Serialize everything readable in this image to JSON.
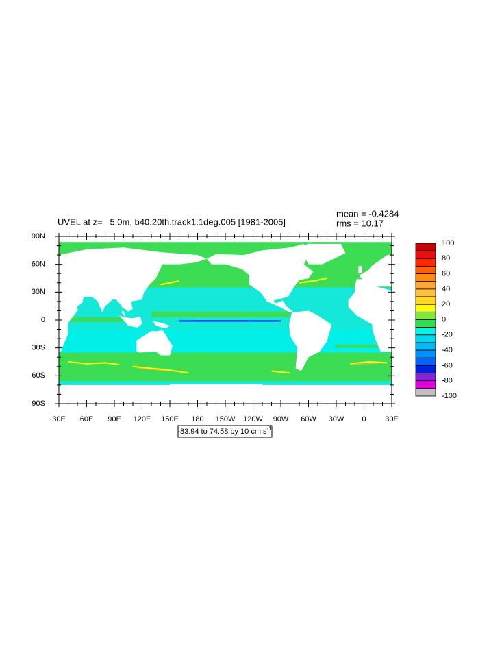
{
  "map": {
    "title": "UVEL at z=   5.0m, b40.20th.track1.1deg.005 [1981-2005]",
    "mean_label": "mean = -0.4284",
    "rms_label": "rms = 10.17",
    "y_labels": [
      "90N",
      "60N",
      "30N",
      "0",
      "30S",
      "60S",
      "90S"
    ],
    "x_labels": [
      "30E",
      "60E",
      "90E",
      "120E",
      "150E",
      "180",
      "150W",
      "120W",
      "90W",
      "60W",
      "30W",
      "0",
      "30E"
    ],
    "range_label": "-83.94 to 74.58 by 10 cm s",
    "range_exponent": "-1",
    "colorbar": {
      "bins": [
        100,
        90,
        80,
        70,
        60,
        50,
        40,
        30,
        20,
        10,
        0,
        -10,
        -20,
        -30,
        -40,
        -50,
        -60,
        -70,
        -80,
        -90,
        -100
      ],
      "colors": [
        "#c80000",
        "#e61010",
        "#ff2800",
        "#ff6000",
        "#ff8c10",
        "#ffa83a",
        "#ffc040",
        "#ffd820",
        "#ffff00",
        "#80e640",
        "#30dc50",
        "#10f0e0",
        "#00d8f0",
        "#00b8f8",
        "#0090ff",
        "#0064ff",
        "#0020e0",
        "#8a20d8",
        "#e000e0",
        "#c0c0c0",
        "#707070"
      ],
      "ticks": [
        100,
        80,
        60,
        40,
        20,
        0,
        -20,
        -40,
        -60,
        -80,
        -100
      ]
    }
  }
}
